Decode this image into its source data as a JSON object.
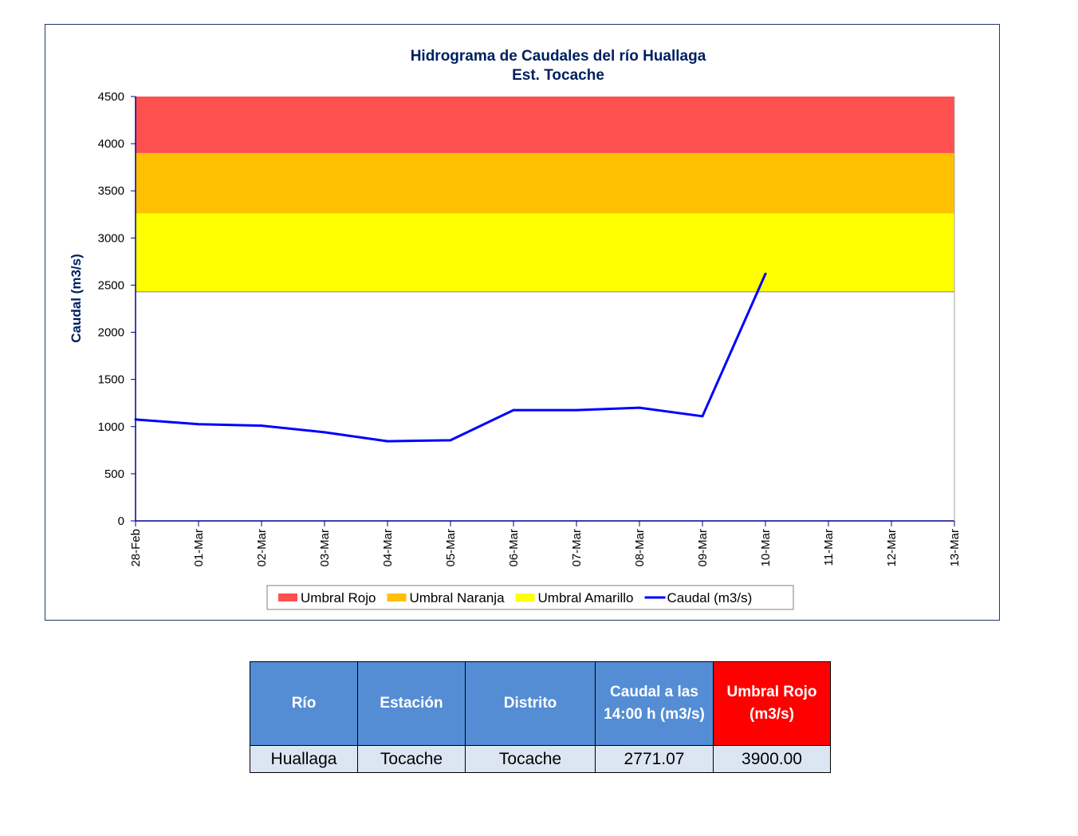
{
  "chart_data": {
    "type": "line",
    "title": "Hidrograma  de Caudales del río Huallaga",
    "subtitle": "Est. Tocache",
    "ylabel": "Caudal (m3/s)",
    "xlabel": "",
    "ylim": [
      0,
      4500
    ],
    "yticks": [
      "0",
      "500",
      "1000",
      "1500",
      "2000",
      "2500",
      "3000",
      "3500",
      "4000",
      "4500"
    ],
    "categories": [
      "28-Feb",
      "01-Mar",
      "02-Mar",
      "03-Mar",
      "04-Mar",
      "05-Mar",
      "06-Mar",
      "07-Mar",
      "08-Mar",
      "09-Mar",
      "10-Mar",
      "11-Mar",
      "12-Mar",
      "13-Mar"
    ],
    "thresholds": [
      {
        "name": "Umbral Rojo",
        "from": 3900,
        "to": 4500,
        "color": "#ff5050"
      },
      {
        "name": "Umbral Naranja",
        "from": 3260,
        "to": 3900,
        "color": "#ffc000"
      },
      {
        "name": "Umbral Amarillo",
        "from": 2430,
        "to": 3260,
        "color": "#ffff00"
      }
    ],
    "series": [
      {
        "name": "Caudal (m3/s)",
        "color": "#0000ff",
        "values": [
          1075,
          1025,
          1010,
          940,
          845,
          855,
          1175,
          1175,
          1200,
          1110,
          2620,
          null,
          null,
          null
        ]
      }
    ],
    "legend_position": "bottom",
    "grid": false
  },
  "table": {
    "headers": [
      "Río",
      "Estación",
      "Distrito",
      "Caudal a las 14:00 h (m3/s)",
      "Umbral Rojo (m3/s)"
    ],
    "row": [
      "Huallaga",
      "Tocache",
      "Tocache",
      "2771.07",
      "3900.00"
    ]
  }
}
